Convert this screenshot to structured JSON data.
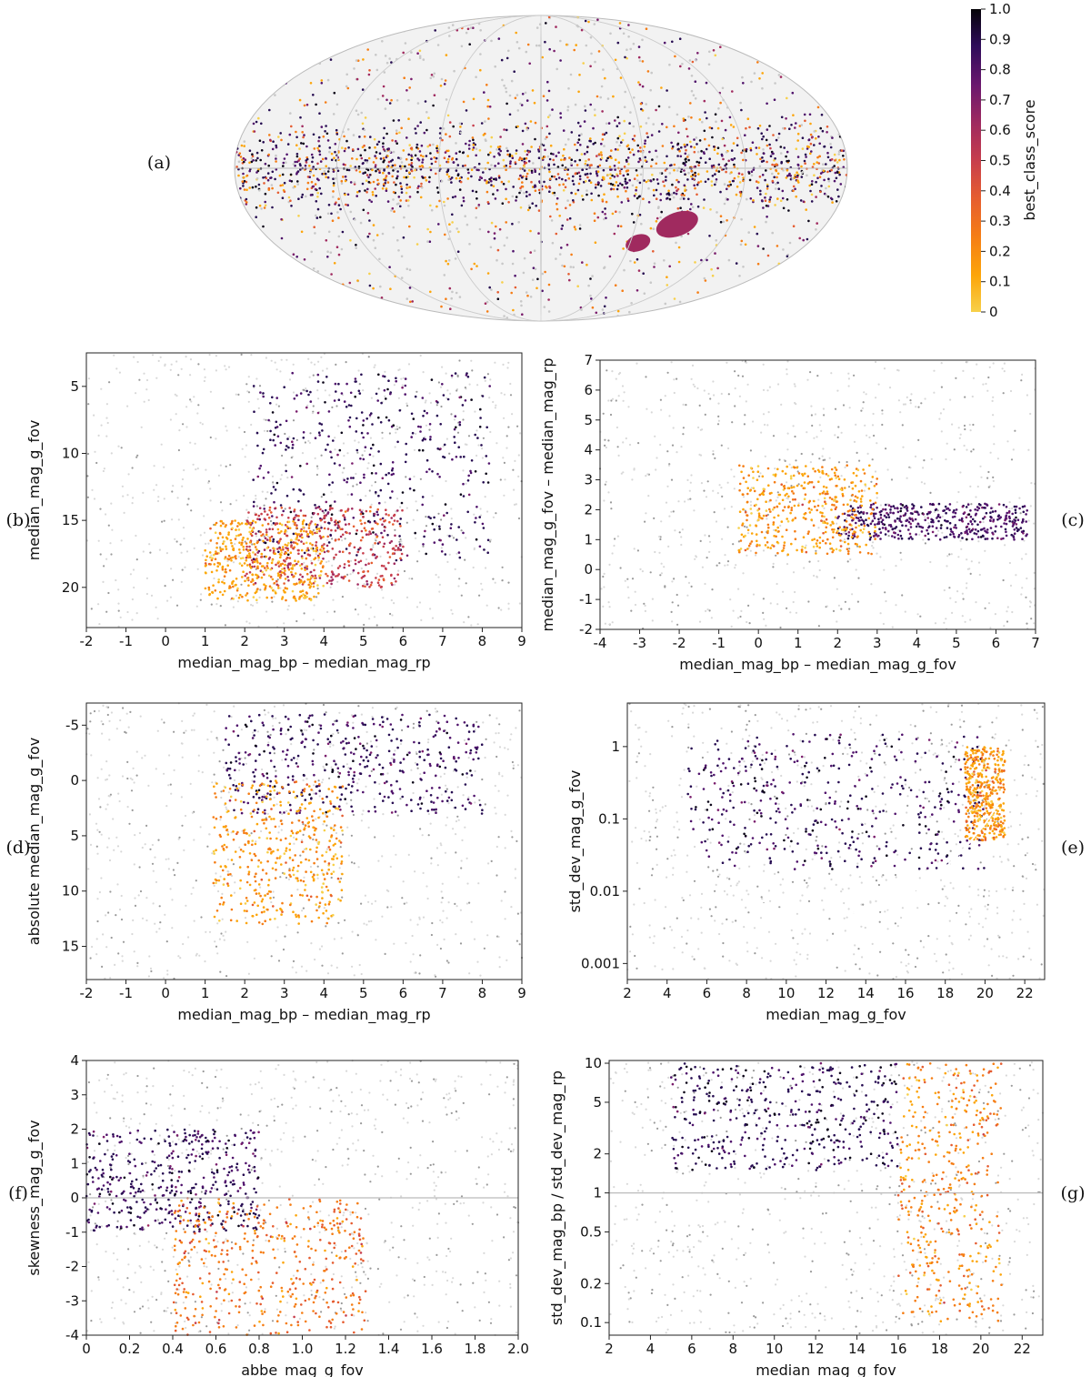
{
  "figure": {
    "colormap": [
      "#f7d04a",
      "#fca50a",
      "#f57d15",
      "#e55c30",
      "#c73e4c",
      "#a02a5f",
      "#7a1d6c",
      "#4f126b",
      "#260c51",
      "#0b0518"
    ],
    "colorbar": {
      "label": "best_class_score",
      "ticks": [
        "0",
        "0.1",
        "0.2",
        "0.3",
        "0.4",
        "0.5",
        "0.6",
        "0.7",
        "0.8",
        "0.9",
        "1.0"
      ]
    }
  },
  "chart_data": [
    {
      "id": "a",
      "panel_label": "(a)",
      "type": "scatter",
      "title": "",
      "projection": "Mollweide (Galactic coordinates)",
      "description_points": [
        {
          "name": "Galactic plane",
          "lat": 0,
          "lon_range": [
            -180,
            180
          ],
          "score": "mixed"
        },
        {
          "name": "LMC",
          "lon": -80,
          "lat": -33,
          "score": 0.6
        },
        {
          "name": "SMC",
          "lon": -57,
          "lat": -44,
          "score": 0.55
        }
      ],
      "xlabel": "",
      "ylabel": ""
    },
    {
      "id": "b",
      "panel_label": "(b)",
      "type": "scatter",
      "xlabel": "median_mag_bp – median_mag_rp",
      "ylabel": "median_mag_g_fov",
      "xlim": [
        -2,
        9
      ],
      "ylim": [
        23,
        2.5
      ],
      "y_inverted": true,
      "xticks": [
        "-2",
        "-1",
        "0",
        "1",
        "2",
        "3",
        "4",
        "5",
        "6",
        "7",
        "8",
        "9"
      ],
      "yticks": [
        "5",
        "10",
        "15",
        "20"
      ],
      "clusters": [
        {
          "name": "high score",
          "x": [
            2.2,
            8.2
          ],
          "y": [
            4,
            18
          ],
          "score": 0.85
        },
        {
          "name": "mid score",
          "x": [
            2,
            6
          ],
          "y": [
            14,
            20
          ],
          "score": 0.45
        },
        {
          "name": "low score",
          "x": [
            1,
            4
          ],
          "y": [
            15,
            21
          ],
          "score": 0.12
        }
      ]
    },
    {
      "id": "c",
      "panel_label": "(c)",
      "type": "scatter",
      "xlabel": "median_mag_bp – median_mag_g_fov",
      "ylabel": "median_mag_g_fov – median_mag_rp",
      "xlim": [
        -4,
        7
      ],
      "ylim": [
        -2,
        7
      ],
      "xticks": [
        "-4",
        "-3",
        "-2",
        "-1",
        "0",
        "1",
        "2",
        "3",
        "4",
        "5",
        "6",
        "7"
      ],
      "yticks": [
        "-2",
        "-1",
        "0",
        "1",
        "2",
        "3",
        "4",
        "5",
        "6",
        "7"
      ],
      "clusters": [
        {
          "name": "high score",
          "x": [
            2,
            6.8
          ],
          "y": [
            1,
            2.2
          ],
          "score": 0.8
        },
        {
          "name": "low score",
          "x": [
            -0.5,
            3
          ],
          "y": [
            0.5,
            3.5
          ],
          "score": 0.15
        }
      ]
    },
    {
      "id": "d",
      "panel_label": "(d)",
      "type": "scatter",
      "xlabel": "median_mag_bp – median_mag_rp",
      "ylabel": "absolute median_mag_g_fov",
      "xlim": [
        -2,
        9
      ],
      "ylim": [
        18,
        -7
      ],
      "y_inverted": true,
      "xticks": [
        "-2",
        "-1",
        "0",
        "1",
        "2",
        "3",
        "4",
        "5",
        "6",
        "7",
        "8",
        "9"
      ],
      "yticks": [
        "-5",
        "0",
        "5",
        "10",
        "15"
      ],
      "clusters": [
        {
          "name": "high score",
          "x": [
            1.5,
            8
          ],
          "y": [
            -6,
            3
          ],
          "score": 0.85
        },
        {
          "name": "low score",
          "x": [
            1.2,
            4.5
          ],
          "y": [
            0,
            13
          ],
          "score": 0.15
        }
      ]
    },
    {
      "id": "e",
      "panel_label": "(e)",
      "type": "scatter",
      "xlabel": "median_mag_g_fov",
      "ylabel": "std_dev_mag_g_fov",
      "xlim": [
        2,
        23
      ],
      "ylim": [
        0.0006,
        4
      ],
      "yscale": "log",
      "xticks": [
        "2",
        "4",
        "6",
        "8",
        "10",
        "12",
        "14",
        "16",
        "18",
        "20",
        "22"
      ],
      "yticks": [
        "0.001",
        "0.01",
        "0.1",
        "1"
      ],
      "clusters": [
        {
          "name": "high score",
          "x": [
            5,
            20
          ],
          "y": [
            0.02,
            1.5
          ],
          "score": 0.85
        },
        {
          "name": "low score",
          "x": [
            19,
            21
          ],
          "y": [
            0.05,
            1
          ],
          "score": 0.15
        }
      ],
      "reference_line": {
        "x": [
          6,
          8,
          9.5,
          10.5,
          11,
          11.5,
          12,
          12.5,
          13,
          14,
          15,
          16,
          17,
          18,
          19,
          20,
          21,
          21.5,
          22,
          23
        ],
        "y": [
          0.0075,
          0.007,
          0.0065,
          0.0058,
          0.0065,
          0.0055,
          0.0068,
          0.0052,
          0.005,
          0.005,
          0.0056,
          0.0078,
          0.012,
          0.021,
          0.04,
          0.085,
          0.22,
          0.5,
          0.7,
          0.72
        ]
      }
    },
    {
      "id": "f",
      "panel_label": "(f)",
      "type": "scatter",
      "xlabel": "abbe_mag_g_fov",
      "ylabel": "skewness_mag_g_fov",
      "xlim": [
        0,
        2
      ],
      "ylim": [
        -4,
        4
      ],
      "xticks": [
        "0",
        "0.2",
        "0.4",
        "0.6",
        "0.8",
        "1.0",
        "1.2",
        "1.4",
        "1.6",
        "1.8",
        "2.0"
      ],
      "yticks": [
        "-4",
        "-3",
        "-2",
        "-1",
        "0",
        "1",
        "2",
        "3",
        "4"
      ],
      "clusters": [
        {
          "name": "high score",
          "x": [
            0,
            0.8
          ],
          "y": [
            -1,
            2
          ],
          "score": 0.85
        },
        {
          "name": "low score",
          "x": [
            0.4,
            1.3
          ],
          "y": [
            -4,
            0
          ],
          "score": 0.25
        }
      ],
      "reference_line": {
        "y": 0
      }
    },
    {
      "id": "g",
      "panel_label": "(g)",
      "type": "scatter",
      "xlabel": "median_mag_g_fov",
      "ylabel": "std_dev_mag_bp / std_dev_mag_rp",
      "xlim": [
        2,
        23
      ],
      "ylim": [
        0.08,
        10.5
      ],
      "yscale": "log",
      "xticks": [
        "2",
        "4",
        "6",
        "8",
        "10",
        "12",
        "14",
        "16",
        "18",
        "20",
        "22"
      ],
      "yticks": [
        "0.1",
        "0.2",
        "0.5",
        "1",
        "2",
        "5",
        "10"
      ],
      "clusters": [
        {
          "name": "high score",
          "x": [
            5,
            16
          ],
          "y": [
            1.5,
            10
          ],
          "score": 0.88
        },
        {
          "name": "low score",
          "x": [
            16,
            21
          ],
          "y": [
            0.1,
            10
          ],
          "score": 0.2
        }
      ],
      "reference_line": {
        "y": 1
      }
    }
  ]
}
